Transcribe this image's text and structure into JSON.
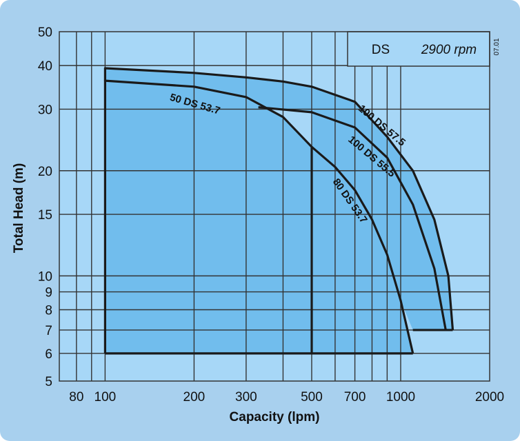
{
  "chart_data": {
    "type": "area",
    "title": "",
    "xlabel": "Capacity (lpm)",
    "ylabel": "Total Head (m)",
    "x_scale": "log",
    "y_scale": "log",
    "xlim": [
      70,
      2000
    ],
    "ylim": [
      5,
      50
    ],
    "x_ticks": [
      80,
      100,
      200,
      300,
      500,
      700,
      1000,
      2000
    ],
    "x_tick_labels": [
      "80",
      "100",
      "200",
      "300",
      "500",
      "700",
      "1000",
      "2000"
    ],
    "x_gridlines": [
      80,
      90,
      100,
      200,
      300,
      400,
      500,
      600,
      700,
      800,
      900,
      1000
    ],
    "y_ticks": [
      5,
      6,
      7,
      8,
      9,
      10,
      15,
      20,
      30,
      40,
      50
    ],
    "y_tick_labels": [
      "5",
      "6",
      "7",
      "8",
      "9",
      "10",
      "15",
      "20",
      "30",
      "40",
      "50"
    ],
    "grid": true,
    "legend_box": {
      "series": "DS",
      "speed": "2900 rpm",
      "code": "07.01"
    },
    "colors": {
      "background": "#a8d0ee",
      "plot_area": "#a7d7f7",
      "fill_region": "#71bded",
      "grid": "#333333",
      "curve": "#1a1a1a"
    },
    "regions": [
      {
        "name": "50 DS 53.7",
        "boundary": [
          [
            100,
            6
          ],
          [
            100,
            36.2
          ],
          [
            200,
            34.8
          ],
          [
            300,
            32.5
          ],
          [
            400,
            28.5
          ],
          [
            500,
            23.4
          ],
          [
            500,
            6
          ]
        ]
      },
      {
        "name": "80 DS 53.7",
        "boundary": [
          [
            500,
            6
          ],
          [
            500,
            23.4
          ],
          [
            600,
            20.5
          ],
          [
            700,
            17.6
          ],
          [
            800,
            14.5
          ],
          [
            900,
            11.5
          ],
          [
            1000,
            8.5
          ],
          [
            1100,
            6
          ]
        ]
      },
      {
        "name": "100 DS 55.5",
        "boundary": [
          [
            330,
            30.4
          ],
          [
            500,
            29.4
          ],
          [
            700,
            26.6
          ],
          [
            900,
            21.8
          ],
          [
            1100,
            16
          ],
          [
            1300,
            10.5
          ],
          [
            1420,
            7
          ]
        ]
      },
      {
        "name": "100 DS 57.5",
        "boundary": [
          [
            100,
            39.3
          ],
          [
            200,
            38.1
          ],
          [
            300,
            37
          ],
          [
            400,
            36
          ],
          [
            500,
            34.8
          ],
          [
            700,
            31.5
          ],
          [
            900,
            25
          ],
          [
            1100,
            20
          ],
          [
            1300,
            14.5
          ],
          [
            1450,
            10
          ],
          [
            1500,
            7
          ]
        ]
      }
    ],
    "series_labels": [
      "50 DS 53.7",
      "100 DS 57.5",
      "100 DS 55.5",
      "80 DS 53.7"
    ]
  }
}
